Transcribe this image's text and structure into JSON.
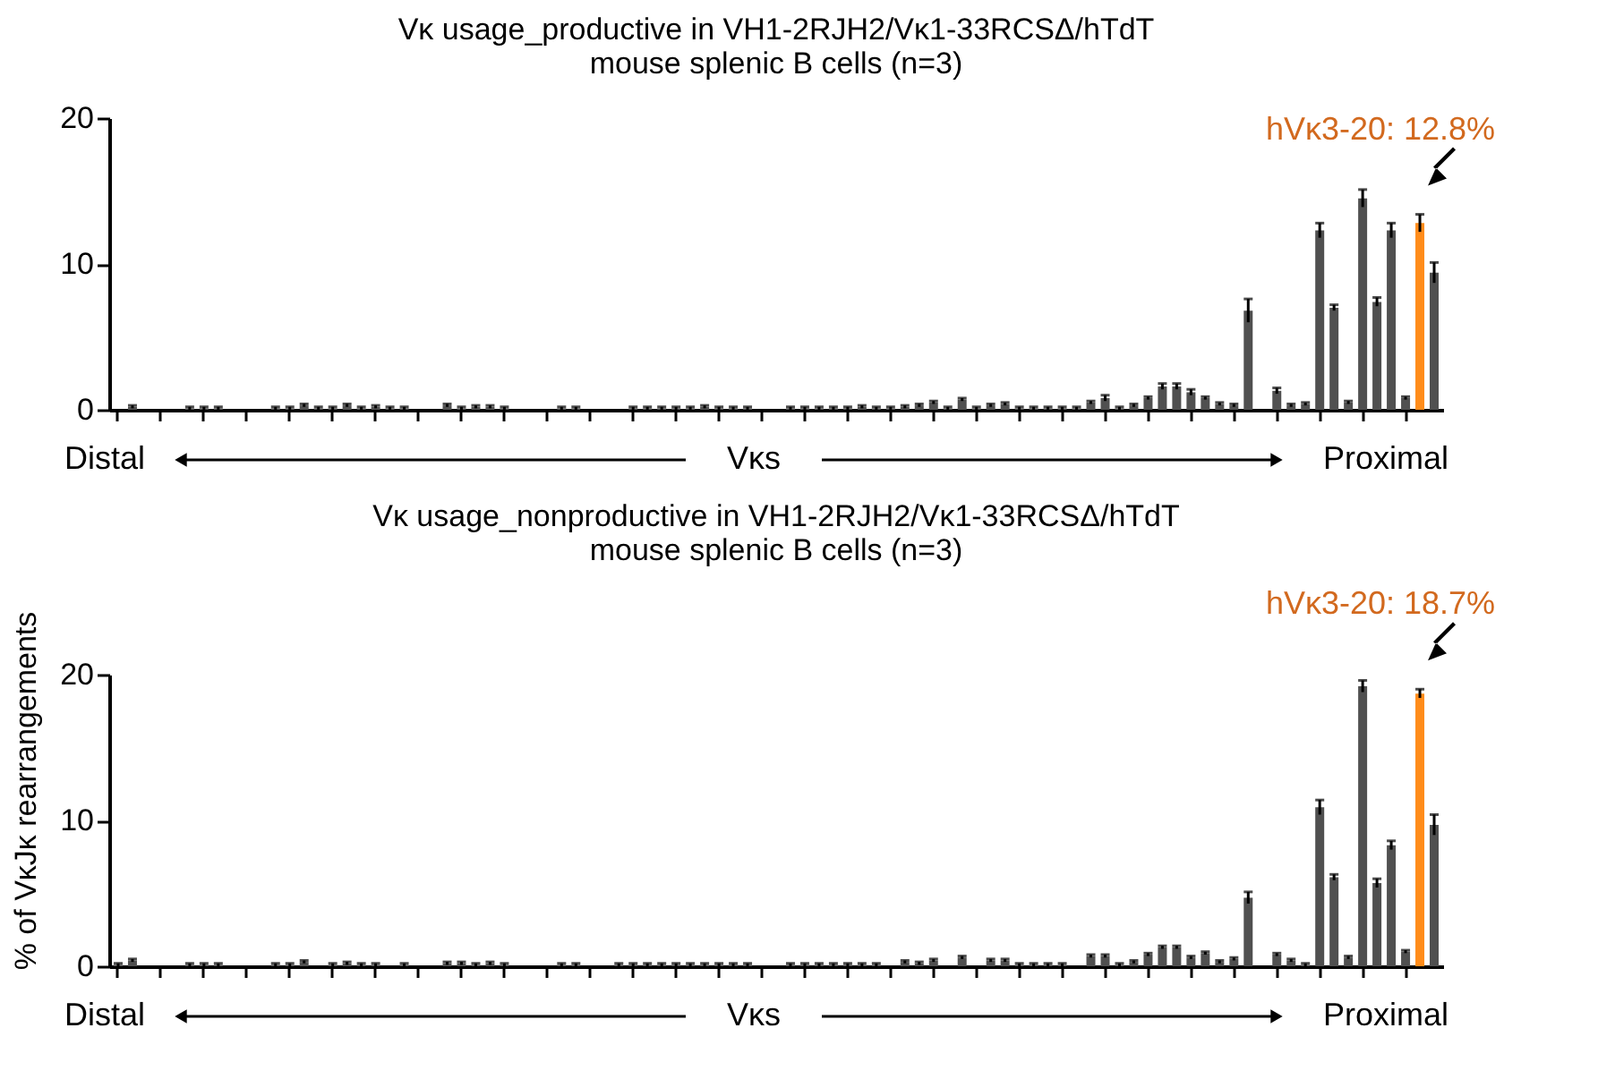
{
  "chart_data": [
    {
      "type": "bar",
      "title": "Vκ usage_productive in VH1-2RJH2/Vκ1-33RCSΔ/hTdT",
      "subtitle": "mouse splenic B cells (n=3)",
      "categories": [
        null,
        null,
        null,
        null,
        null,
        null,
        null,
        null,
        null,
        null,
        null,
        null,
        null,
        null,
        null,
        null,
        null,
        null,
        null,
        null,
        null,
        null,
        null,
        null,
        null,
        null,
        null,
        null,
        null,
        null,
        null,
        null,
        null,
        null,
        null,
        null,
        null,
        null,
        null,
        null,
        null,
        null,
        null,
        null,
        null,
        null,
        null,
        null,
        null,
        null,
        null,
        null,
        null,
        null,
        null,
        null,
        null,
        null,
        null,
        null,
        null,
        null,
        null,
        null,
        null,
        null,
        null,
        null,
        null,
        null,
        null,
        null,
        null,
        null,
        null,
        null,
        null,
        null,
        null,
        null,
        null,
        null,
        null,
        null,
        null,
        null,
        null,
        null,
        null,
        null,
        null,
        null,
        null
      ],
      "values": [
        0,
        0.2,
        0,
        0,
        0,
        0.1,
        0.1,
        0.1,
        0,
        0,
        0,
        0.1,
        0.1,
        0.3,
        0.1,
        0.1,
        0.3,
        0.1,
        0.2,
        0.1,
        0.1,
        0,
        0,
        0.3,
        0.1,
        0.2,
        0.2,
        0.1,
        0,
        0,
        0,
        0.1,
        0.1,
        0,
        0,
        0,
        0.1,
        0.1,
        0.1,
        0.1,
        0.1,
        0.2,
        0.1,
        0.1,
        0.1,
        0,
        0,
        0.1,
        0.1,
        0.1,
        0.1,
        0.1,
        0.2,
        0.1,
        0.1,
        0.2,
        0.3,
        0.5,
        0.1,
        0.7,
        0.1,
        0.3,
        0.4,
        0.1,
        0.1,
        0.1,
        0.1,
        0.1,
        0.5,
        0.8,
        0.1,
        0.3,
        0.8,
        1.6,
        1.6,
        1.2,
        0.8,
        0.4,
        0.3,
        6.8,
        0,
        1.3,
        0.3,
        0.4,
        12.3,
        7.0,
        0.5,
        14.5,
        7.4,
        12.3,
        0.8,
        12.8,
        9.4
      ],
      "errors": [
        null,
        0.1,
        null,
        null,
        null,
        0.1,
        0.1,
        0.1,
        null,
        null,
        null,
        0.1,
        0.1,
        0.1,
        0.1,
        0.1,
        0.1,
        0.1,
        0.1,
        0.1,
        0.1,
        null,
        null,
        0.1,
        0.1,
        0.1,
        0.1,
        0.1,
        null,
        null,
        null,
        0.1,
        0.1,
        null,
        null,
        null,
        0.1,
        0.1,
        0.1,
        0.1,
        0.1,
        0.1,
        0.1,
        0.1,
        0.1,
        null,
        null,
        0.1,
        0.1,
        0.1,
        0.1,
        0.1,
        0.1,
        0.1,
        0.1,
        0.1,
        0.1,
        0.1,
        0.1,
        0.1,
        0.1,
        0.1,
        0.1,
        0.1,
        0.1,
        0.1,
        0.1,
        0.1,
        0.1,
        0.2,
        0.1,
        0.1,
        0.1,
        0.2,
        0.2,
        0.2,
        0.1,
        0.1,
        0.1,
        0.8,
        null,
        0.2,
        0.1,
        0.1,
        0.5,
        0.2,
        0.1,
        0.6,
        0.3,
        0.5,
        0.1,
        0.6,
        0.7
      ],
      "colors": [
        "#505050",
        "#505050",
        "#505050",
        "#505050",
        "#505050",
        "#505050",
        "#505050",
        "#505050",
        "#505050",
        "#505050",
        "#505050",
        "#505050",
        "#505050",
        "#505050",
        "#505050",
        "#505050",
        "#505050",
        "#505050",
        "#505050",
        "#505050",
        "#505050",
        "#505050",
        "#505050",
        "#505050",
        "#505050",
        "#505050",
        "#505050",
        "#505050",
        "#505050",
        "#505050",
        "#505050",
        "#505050",
        "#505050",
        "#505050",
        "#505050",
        "#505050",
        "#505050",
        "#505050",
        "#505050",
        "#505050",
        "#505050",
        "#505050",
        "#505050",
        "#505050",
        "#505050",
        "#505050",
        "#505050",
        "#505050",
        "#505050",
        "#505050",
        "#505050",
        "#505050",
        "#505050",
        "#505050",
        "#505050",
        "#505050",
        "#505050",
        "#505050",
        "#505050",
        "#505050",
        "#505050",
        "#505050",
        "#505050",
        "#505050",
        "#505050",
        "#505050",
        "#505050",
        "#505050",
        "#505050",
        "#505050",
        "#505050",
        "#505050",
        "#505050",
        "#505050",
        "#505050",
        "#505050",
        "#505050",
        "#505050",
        "#505050",
        "#505050",
        "#505050",
        "#505050",
        "#505050",
        "#505050",
        "#505050",
        "#505050",
        "#505050",
        "#505050",
        "#505050",
        "#505050",
        "#505050",
        "#ff8c1a",
        "#505050"
      ],
      "ylim": [
        0,
        20
      ],
      "yticks": [
        0,
        10,
        20
      ],
      "grid": false,
      "annotations": [
        "Distal",
        "Vκs",
        "Proximal",
        "hVκ3-20: 12.8%"
      ]
    },
    {
      "type": "bar",
      "title": "Vκ usage_nonproductive in VH1-2RJH2/Vκ1-33RCSΔ/hTdT",
      "subtitle": "mouse splenic B cells (n=3)",
      "ylabel": "% of VκJκ rearrangements",
      "categories": [
        null,
        null,
        null,
        null,
        null,
        null,
        null,
        null,
        null,
        null,
        null,
        null,
        null,
        null,
        null,
        null,
        null,
        null,
        null,
        null,
        null,
        null,
        null,
        null,
        null,
        null,
        null,
        null,
        null,
        null,
        null,
        null,
        null,
        null,
        null,
        null,
        null,
        null,
        null,
        null,
        null,
        null,
        null,
        null,
        null,
        null,
        null,
        null,
        null,
        null,
        null,
        null,
        null,
        null,
        null,
        null,
        null,
        null,
        null,
        null,
        null,
        null,
        null,
        null,
        null,
        null,
        null,
        null,
        null,
        null,
        null,
        null,
        null,
        null,
        null,
        null,
        null,
        null,
        null,
        null,
        null,
        null,
        null,
        null,
        null,
        null,
        null,
        null,
        null,
        null,
        null,
        null,
        null
      ],
      "values": [
        0.1,
        0.4,
        0,
        0,
        0,
        0.1,
        0.1,
        0.1,
        0,
        0,
        0,
        0.1,
        0.1,
        0.3,
        0,
        0.1,
        0.2,
        0.1,
        0.1,
        0,
        0.1,
        0,
        0,
        0.2,
        0.2,
        0.1,
        0.2,
        0.1,
        0,
        0,
        0,
        0.1,
        0.1,
        0,
        0,
        0.1,
        0.1,
        0.1,
        0.1,
        0.1,
        0.1,
        0.1,
        0.1,
        0.1,
        0.1,
        0,
        0,
        0.1,
        0.1,
        0.1,
        0.1,
        0.1,
        0.1,
        0.1,
        0,
        0.3,
        0.2,
        0.4,
        0,
        0.6,
        0,
        0.4,
        0.4,
        0.1,
        0.1,
        0.1,
        0.1,
        0,
        0.7,
        0.7,
        0.1,
        0.3,
        0.8,
        1.3,
        1.3,
        0.6,
        0.9,
        0.3,
        0.5,
        4.7,
        0,
        0.8,
        0.4,
        0.1,
        10.9,
        6.1,
        0.6,
        19.2,
        5.7,
        8.3,
        1.0,
        18.7,
        9.7
      ],
      "errors": [
        0.1,
        0.1,
        null,
        null,
        null,
        0.1,
        0.1,
        0.1,
        null,
        null,
        null,
        0.1,
        0.1,
        0.1,
        null,
        0.1,
        0.1,
        0.1,
        0.1,
        null,
        0.1,
        null,
        null,
        0.1,
        0.1,
        0.1,
        0.1,
        0.1,
        null,
        null,
        null,
        0.1,
        0.1,
        null,
        null,
        0.1,
        0.1,
        0.1,
        0.1,
        0.1,
        0.1,
        0.1,
        0.1,
        0.1,
        0.1,
        null,
        null,
        0.1,
        0.1,
        0.1,
        0.1,
        0.1,
        0.1,
        0.1,
        null,
        0.1,
        0.1,
        0.1,
        null,
        0.1,
        null,
        0.1,
        0.1,
        0.1,
        0.1,
        0.1,
        0.1,
        null,
        0.1,
        0.1,
        0.1,
        0.1,
        0.1,
        0.1,
        0.1,
        0.1,
        0.1,
        0.1,
        0.1,
        0.4,
        null,
        0.1,
        0.1,
        0.1,
        0.5,
        0.2,
        0.1,
        0.4,
        0.3,
        0.3,
        0.1,
        0.3,
        0.7
      ],
      "colors": [
        "#505050",
        "#505050",
        "#505050",
        "#505050",
        "#505050",
        "#505050",
        "#505050",
        "#505050",
        "#505050",
        "#505050",
        "#505050",
        "#505050",
        "#505050",
        "#505050",
        "#505050",
        "#505050",
        "#505050",
        "#505050",
        "#505050",
        "#505050",
        "#505050",
        "#505050",
        "#505050",
        "#505050",
        "#505050",
        "#505050",
        "#505050",
        "#505050",
        "#505050",
        "#505050",
        "#505050",
        "#505050",
        "#505050",
        "#505050",
        "#505050",
        "#505050",
        "#505050",
        "#505050",
        "#505050",
        "#505050",
        "#505050",
        "#505050",
        "#505050",
        "#505050",
        "#505050",
        "#505050",
        "#505050",
        "#505050",
        "#505050",
        "#505050",
        "#505050",
        "#505050",
        "#505050",
        "#505050",
        "#505050",
        "#505050",
        "#505050",
        "#505050",
        "#505050",
        "#505050",
        "#505050",
        "#505050",
        "#505050",
        "#505050",
        "#505050",
        "#505050",
        "#505050",
        "#505050",
        "#505050",
        "#505050",
        "#505050",
        "#505050",
        "#505050",
        "#505050",
        "#505050",
        "#505050",
        "#505050",
        "#505050",
        "#505050",
        "#505050",
        "#505050",
        "#505050",
        "#505050",
        "#505050",
        "#505050",
        "#505050",
        "#505050",
        "#505050",
        "#505050",
        "#505050",
        "#505050",
        "#ff8c1a",
        "#505050"
      ],
      "ylim": [
        0,
        20
      ],
      "yticks": [
        0,
        10,
        20
      ],
      "grid": false,
      "annotations": [
        "Distal",
        "Vκs",
        "Proximal",
        "hVκ3-20: 18.7%"
      ]
    }
  ]
}
